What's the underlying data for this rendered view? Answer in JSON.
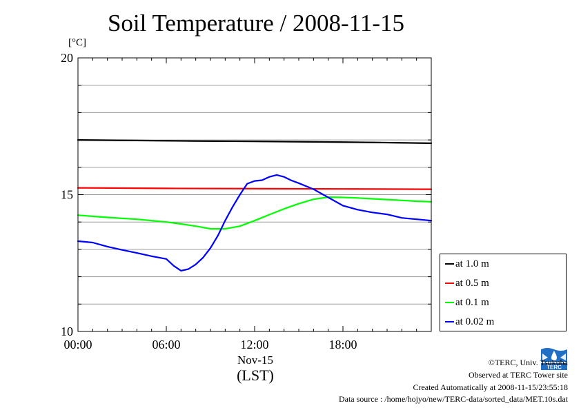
{
  "chart_data": {
    "type": "line",
    "title": "Soil Temperature / 2008-11-15",
    "ylabel": "[°C]",
    "xlabel_date": "Nov-15",
    "xlabel_tz": "(LST)",
    "x_unit": "hour of day (LST)",
    "xlim": [
      0,
      24
    ],
    "ylim": [
      10,
      20
    ],
    "yticks": [
      10,
      15,
      20
    ],
    "yminor_step": 1,
    "xticks": [
      {
        "value": 0,
        "label": "00:00"
      },
      {
        "value": 6,
        "label": "06:00"
      },
      {
        "value": 12,
        "label": "12:00"
      },
      {
        "value": 18,
        "label": "18:00"
      }
    ],
    "grid": true,
    "legend_position": "bottom-right, outside plot",
    "series": [
      {
        "name": "at 1.0 m",
        "color": "#000000",
        "x": [
          0,
          4,
          8,
          12,
          16,
          20,
          24
        ],
        "y": [
          17.0,
          16.98,
          16.96,
          16.95,
          16.93,
          16.91,
          16.88
        ]
      },
      {
        "name": "at 0.5 m",
        "color": "#ff0000",
        "x": [
          0,
          6,
          12,
          18,
          24
        ],
        "y": [
          15.25,
          15.23,
          15.22,
          15.21,
          15.2
        ]
      },
      {
        "name": "at 0.1 m",
        "color": "#00ff00",
        "x": [
          0,
          2,
          4,
          6,
          7,
          8,
          9,
          10,
          11,
          12,
          13,
          14,
          15,
          16,
          17,
          18,
          19,
          20,
          21,
          22,
          23,
          24
        ],
        "y": [
          14.25,
          14.17,
          14.1,
          14.0,
          13.93,
          13.85,
          13.75,
          13.75,
          13.85,
          14.05,
          14.27,
          14.48,
          14.67,
          14.83,
          14.91,
          14.9,
          14.88,
          14.85,
          14.82,
          14.79,
          14.76,
          14.74
        ]
      },
      {
        "name": "at 0.02 m",
        "color": "#0000ff",
        "x": [
          0,
          1,
          2,
          3,
          4,
          5,
          6,
          6.5,
          7,
          7.5,
          8,
          8.5,
          9,
          9.5,
          10,
          10.5,
          11,
          11.5,
          12,
          12.5,
          13,
          13.5,
          14,
          14.5,
          15,
          16,
          17,
          18,
          19,
          20,
          21,
          22,
          23,
          24
        ],
        "y": [
          13.3,
          13.25,
          13.1,
          12.98,
          12.87,
          12.75,
          12.65,
          12.4,
          12.22,
          12.28,
          12.45,
          12.7,
          13.05,
          13.5,
          14.05,
          14.55,
          15.0,
          15.4,
          15.5,
          15.53,
          15.65,
          15.72,
          15.65,
          15.52,
          15.42,
          15.2,
          14.9,
          14.6,
          14.45,
          14.35,
          14.28,
          14.15,
          14.1,
          14.05
        ]
      }
    ]
  },
  "logo_text": "TERC",
  "footer": {
    "copyright": "©TERC, Univ. Tsukuba",
    "observed": "Observed at TERC Tower site",
    "created": "Created Automatically at 2008-11-15/23:55:18",
    "source": "Data source : /home/hojyo/new/TERC-data/sorted_data/MET.10s.dat"
  }
}
